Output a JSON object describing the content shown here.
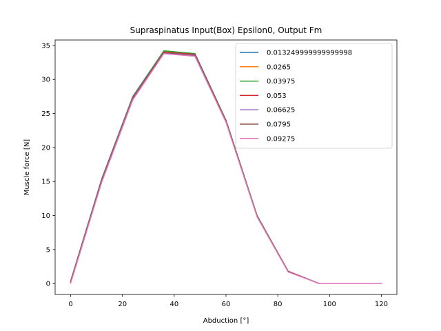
{
  "chart_data": {
    "type": "line",
    "title": "Supraspinatus Input(Box) Epsilon0, Output Fm",
    "xlabel": "Abduction [°]",
    "ylabel": "Muscle force [N]",
    "xlim": [
      -6,
      126
    ],
    "ylim": [
      -1.6,
      35.8
    ],
    "xticks": [
      0,
      20,
      40,
      60,
      80,
      100,
      120
    ],
    "yticks": [
      0,
      5,
      10,
      15,
      20,
      25,
      30,
      35
    ],
    "grid": false,
    "legend_position": "top-right",
    "x": [
      0,
      12,
      24,
      36,
      48,
      60,
      72,
      84,
      96,
      108,
      120
    ],
    "series": [
      {
        "name": "0.013249999999999998",
        "color": "#1f77b4",
        "values": [
          0.4,
          15.4,
          27.5,
          34.2,
          33.8,
          24.0,
          10.0,
          1.8,
          0.0,
          0.0,
          0.0
        ]
      },
      {
        "name": "0.0265",
        "color": "#ff7f0e",
        "values": [
          0.35,
          15.3,
          27.4,
          34.1,
          33.7,
          23.9,
          10.0,
          1.8,
          0.0,
          0.0,
          0.0
        ]
      },
      {
        "name": "0.03975",
        "color": "#2ca02c",
        "values": [
          0.3,
          15.3,
          27.4,
          34.2,
          33.8,
          24.0,
          10.0,
          1.8,
          0.0,
          0.0,
          0.0
        ]
      },
      {
        "name": "0.053",
        "color": "#d62728",
        "values": [
          0.25,
          15.2,
          27.3,
          34.0,
          33.7,
          23.9,
          9.9,
          1.8,
          0.0,
          0.0,
          0.0
        ]
      },
      {
        "name": "0.06625",
        "color": "#9467bd",
        "values": [
          0.2,
          15.1,
          27.2,
          33.9,
          33.6,
          23.8,
          9.9,
          1.8,
          0.0,
          0.0,
          0.0
        ]
      },
      {
        "name": "0.0795",
        "color": "#8c564b",
        "values": [
          0.15,
          15.0,
          27.1,
          33.9,
          33.5,
          23.8,
          9.9,
          1.8,
          0.0,
          0.0,
          0.0
        ]
      },
      {
        "name": "0.09275",
        "color": "#e377c2",
        "values": [
          0.05,
          14.9,
          27.0,
          33.8,
          33.4,
          23.7,
          9.8,
          1.7,
          0.0,
          0.0,
          0.0
        ]
      }
    ]
  }
}
